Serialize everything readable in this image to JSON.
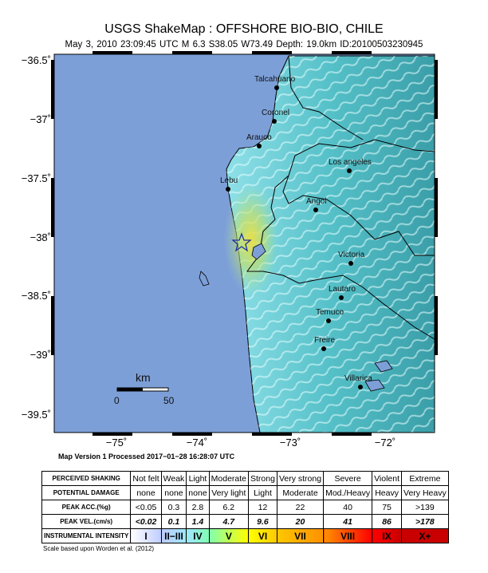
{
  "header": {
    "title": "USGS ShakeMap : OFFSHORE BIO-BIO, CHILE",
    "subtitle": "May  3, 2010 23:09:45 UTC   M 6.3   S38.05 W73.49   Depth: 19.0km   ID:20100503230945"
  },
  "map": {
    "lat_ticks": [
      "−36.5˚",
      "−37˚",
      "−37.5˚",
      "−38˚",
      "−38.5˚",
      "−39˚",
      "−39.5˚"
    ],
    "lon_ticks": [
      "−75˚",
      "−74˚",
      "−73˚",
      "−72˚"
    ],
    "cities": [
      "Talcahuano",
      "Coronel",
      "Arauco",
      "Lebu",
      "Los angeles",
      "Angol",
      "Victoria",
      "Lautaro",
      "Temuco",
      "Freire",
      "Villarica"
    ],
    "scale_bar": {
      "unit": "km",
      "min": "0",
      "max": "50"
    },
    "epicenter_icon": "star-icon",
    "colors": {
      "ocean": "#7d9fd8",
      "land_low": "#8fe0e8",
      "land_mid": "#3ea9b0",
      "shaking_peak": "#f0e040"
    }
  },
  "processed": "Map Version 1 Processed 2017−01−28 16:28:07 UTC",
  "legend": {
    "row_labels": [
      "PERCEIVED SHAKING",
      "POTENTIAL DAMAGE",
      "PEAK ACC.(%g)",
      "PEAK VEL.(cm/s)",
      "INSTRUMENTAL INTENSITY"
    ],
    "shaking": [
      "Not felt",
      "Weak",
      "Light",
      "Moderate",
      "Strong",
      "Very strong",
      "Severe",
      "Violent",
      "Extreme"
    ],
    "damage": [
      "none",
      "none",
      "none",
      "Very light",
      "Light",
      "Moderate",
      "Mod./Heavy",
      "Heavy",
      "Very Heavy"
    ],
    "acc": [
      "<0.05",
      "0.3",
      "2.8",
      "6.2",
      "12",
      "22",
      "40",
      "75",
      ">139"
    ],
    "vel": [
      "<0.02",
      "0.1",
      "1.4",
      "4.7",
      "9.6",
      "20",
      "41",
      "86",
      ">178"
    ],
    "intensity": [
      "I",
      "II−III",
      "IV",
      "V",
      "VI",
      "VII",
      "VIII",
      "IX",
      "X+"
    ],
    "intensity_colors": [
      "#ffffff",
      "#bfccff",
      "#a0e6ff",
      "#80ffb0",
      "#ffff00",
      "#ffc800",
      "#ff9100",
      "#ff0000",
      "#c80000"
    ],
    "note": "Scale based upon Worden et al. (2012)"
  }
}
